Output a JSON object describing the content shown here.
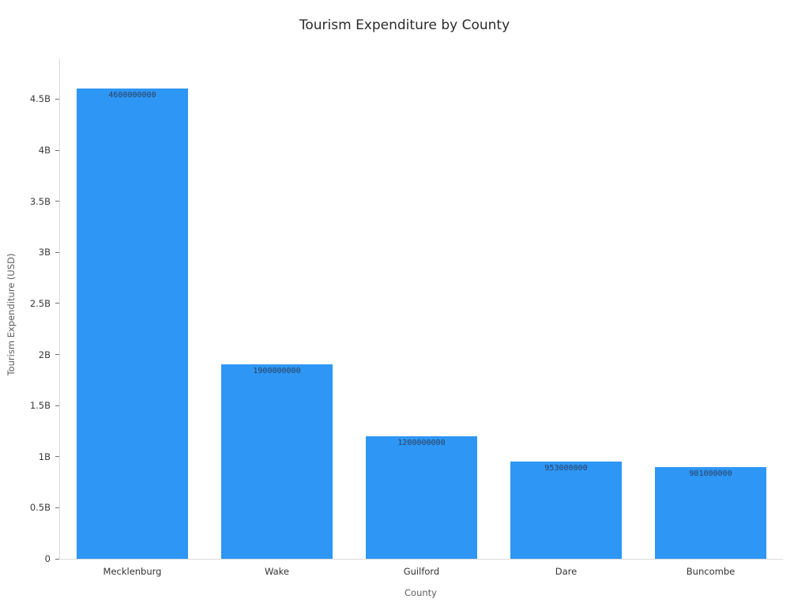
{
  "chart_data": {
    "type": "bar",
    "title": "Tourism Expenditure by County",
    "xlabel": "County",
    "ylabel": "Tourism Expenditure (USD)",
    "categories": [
      "Mecklenburg",
      "Wake",
      "Guilford",
      "Dare",
      "Buncombe"
    ],
    "values": [
      4600000000,
      1900000000,
      1200000000,
      953000000,
      901000000
    ],
    "value_labels": [
      "4600000000",
      "1900000000",
      "1200000000",
      "953000000",
      "901000000"
    ],
    "ylim": [
      0,
      4890000000
    ],
    "yticks": [
      {
        "value": 0,
        "label": "0"
      },
      {
        "value": 500000000,
        "label": "0.5B"
      },
      {
        "value": 1000000000,
        "label": "1B"
      },
      {
        "value": 1500000000,
        "label": "1.5B"
      },
      {
        "value": 2000000000,
        "label": "2B"
      },
      {
        "value": 2500000000,
        "label": "2.5B"
      },
      {
        "value": 3000000000,
        "label": "3B"
      },
      {
        "value": 3500000000,
        "label": "3.5B"
      },
      {
        "value": 4000000000,
        "label": "4B"
      },
      {
        "value": 4500000000,
        "label": "4.5B"
      }
    ],
    "bar_color": "#2e96f4",
    "value_label_color": "#2a3f5f",
    "grid": false,
    "legend": false,
    "background": "#ffffff"
  }
}
